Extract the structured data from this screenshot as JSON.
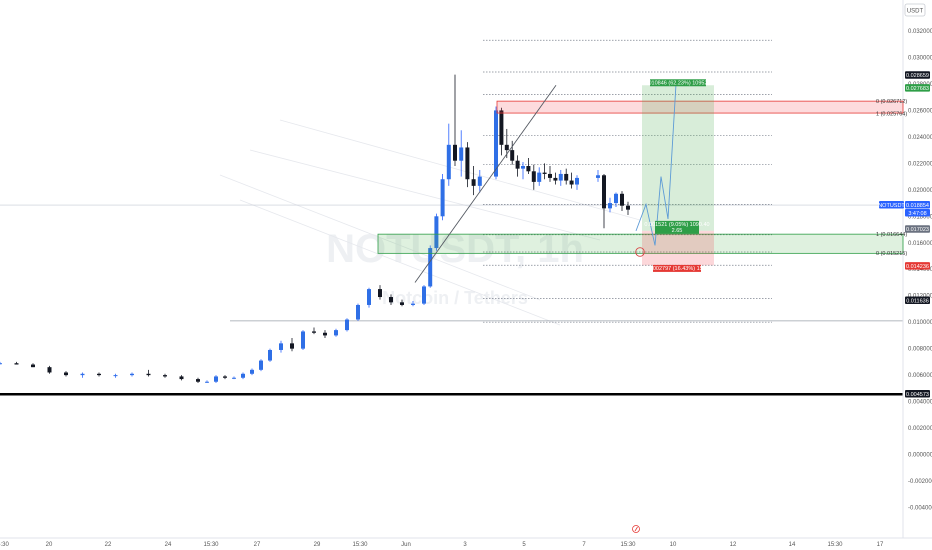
{
  "chart_data": {
    "type": "candlestick",
    "symbol": "NOTUSDT",
    "quote_unit": "USDT",
    "watermark": "NOTUSDT, 1h",
    "watermark_sub": "Notcoin / Tethers",
    "y_range": [
      -0.021,
      0.0345
    ],
    "y_ticks": [
      "0.032000",
      "0.030000",
      "0.028000",
      "0.026000",
      "0.024000",
      "0.022000",
      "0.020000",
      "0.018000",
      "0.016000",
      "0.014000",
      "0.012000",
      "0.010000",
      "0.008000",
      "0.006000",
      "0.004000",
      "0.002000",
      "0.000000",
      "-0.002000",
      "-0.004000"
    ],
    "y_tick_values": [
      0.032,
      0.03,
      0.028,
      0.026,
      0.024,
      0.022,
      0.02,
      0.018,
      0.016,
      0.014,
      0.012,
      0.01,
      0.008,
      0.006,
      0.004,
      0.002,
      0.0,
      -0.002,
      -0.004
    ],
    "time_labels": [
      "6:30",
      "20",
      "22",
      "24",
      "15:30",
      "27",
      "29",
      "15:30",
      "Jun",
      "3",
      "5",
      "7",
      "15:30",
      "10",
      "12",
      "14",
      "15:30",
      "17"
    ],
    "time_positions": [
      0,
      46,
      105,
      165,
      208,
      254,
      314,
      357,
      403,
      462,
      521,
      581,
      625,
      670,
      730,
      789,
      832,
      877
    ],
    "candles": [
      {
        "o": 0.0069,
        "h": 0.007,
        "l": 0.0068,
        "c": 0.0069
      },
      {
        "o": 0.0069,
        "h": 0.007,
        "l": 0.0068,
        "c": 0.0068
      },
      {
        "o": 0.0068,
        "h": 0.0069,
        "l": 0.0066,
        "c": 0.0066
      },
      {
        "o": 0.0066,
        "h": 0.0067,
        "l": 0.0061,
        "c": 0.0062
      },
      {
        "o": 0.0062,
        "h": 0.0063,
        "l": 0.0059,
        "c": 0.006
      },
      {
        "o": 0.006,
        "h": 0.0062,
        "l": 0.0058,
        "c": 0.0061
      },
      {
        "o": 0.0061,
        "h": 0.0062,
        "l": 0.0059,
        "c": 0.006
      },
      {
        "o": 0.006,
        "h": 0.0061,
        "l": 0.0058,
        "c": 0.006
      },
      {
        "o": 0.006,
        "h": 0.0062,
        "l": 0.0059,
        "c": 0.0061
      },
      {
        "o": 0.0061,
        "h": 0.0064,
        "l": 0.0059,
        "c": 0.006
      },
      {
        "o": 0.006,
        "h": 0.0061,
        "l": 0.0058,
        "c": 0.0059
      },
      {
        "o": 0.0059,
        "h": 0.006,
        "l": 0.0056,
        "c": 0.0057
      },
      {
        "o": 0.0057,
        "h": 0.0058,
        "l": 0.0054,
        "c": 0.0055
      },
      {
        "o": 0.0055,
        "h": 0.0056,
        "l": 0.0054,
        "c": 0.0055
      },
      {
        "o": 0.0055,
        "h": 0.006,
        "l": 0.0054,
        "c": 0.0059
      },
      {
        "o": 0.0059,
        "h": 0.006,
        "l": 0.0057,
        "c": 0.0058
      },
      {
        "o": 0.0058,
        "h": 0.0059,
        "l": 0.0057,
        "c": 0.0058
      },
      {
        "o": 0.0058,
        "h": 0.0062,
        "l": 0.0057,
        "c": 0.0061
      },
      {
        "o": 0.0061,
        "h": 0.0065,
        "l": 0.006,
        "c": 0.0064
      },
      {
        "o": 0.0064,
        "h": 0.0072,
        "l": 0.0063,
        "c": 0.0071
      },
      {
        "o": 0.0071,
        "h": 0.008,
        "l": 0.007,
        "c": 0.0079
      },
      {
        "o": 0.0079,
        "h": 0.0086,
        "l": 0.0077,
        "c": 0.0084
      },
      {
        "o": 0.0084,
        "h": 0.0088,
        "l": 0.0078,
        "c": 0.008
      },
      {
        "o": 0.008,
        "h": 0.0094,
        "l": 0.0079,
        "c": 0.0093
      },
      {
        "o": 0.0093,
        "h": 0.0096,
        "l": 0.0091,
        "c": 0.0092
      },
      {
        "o": 0.0092,
        "h": 0.0094,
        "l": 0.0088,
        "c": 0.009
      },
      {
        "o": 0.009,
        "h": 0.0095,
        "l": 0.0089,
        "c": 0.0094
      },
      {
        "o": 0.0094,
        "h": 0.0103,
        "l": 0.0093,
        "c": 0.0102
      },
      {
        "o": 0.0102,
        "h": 0.0114,
        "l": 0.0101,
        "c": 0.0113
      },
      {
        "o": 0.0113,
        "h": 0.0126,
        "l": 0.0111,
        "c": 0.0125
      },
      {
        "o": 0.0125,
        "h": 0.0128,
        "l": 0.0117,
        "c": 0.0119
      },
      {
        "o": 0.0119,
        "h": 0.0121,
        "l": 0.0113,
        "c": 0.0115
      },
      {
        "o": 0.0115,
        "h": 0.0117,
        "l": 0.0112,
        "c": 0.0113
      },
      {
        "o": 0.0113,
        "h": 0.0116,
        "l": 0.0112,
        "c": 0.0114
      },
      {
        "o": 0.0114,
        "h": 0.0128,
        "l": 0.0113,
        "c": 0.0127
      },
      {
        "o": 0.0127,
        "h": 0.0158,
        "l": 0.0126,
        "c": 0.0156
      },
      {
        "o": 0.0156,
        "h": 0.0182,
        "l": 0.0154,
        "c": 0.018
      },
      {
        "o": 0.018,
        "h": 0.0212,
        "l": 0.0177,
        "c": 0.0208
      },
      {
        "o": 0.0208,
        "h": 0.025,
        "l": 0.0203,
        "c": 0.0234
      },
      {
        "o": 0.0234,
        "h": 0.0287,
        "l": 0.0218,
        "c": 0.0222
      },
      {
        "o": 0.0222,
        "h": 0.0245,
        "l": 0.021,
        "c": 0.0232
      },
      {
        "o": 0.0232,
        "h": 0.0236,
        "l": 0.0202,
        "c": 0.0208
      },
      {
        "o": 0.0208,
        "h": 0.0218,
        "l": 0.0196,
        "c": 0.0203
      },
      {
        "o": 0.0203,
        "h": 0.0215,
        "l": 0.0198,
        "c": 0.021
      },
      {
        "o": 0.021,
        "h": 0.0263,
        "l": 0.0208,
        "c": 0.026
      },
      {
        "o": 0.026,
        "h": 0.0262,
        "l": 0.0226,
        "c": 0.0234
      },
      {
        "o": 0.0234,
        "h": 0.0246,
        "l": 0.0224,
        "c": 0.023
      },
      {
        "o": 0.023,
        "h": 0.0237,
        "l": 0.0219,
        "c": 0.0222
      },
      {
        "o": 0.0222,
        "h": 0.0226,
        "l": 0.021,
        "c": 0.0216
      },
      {
        "o": 0.0216,
        "h": 0.0221,
        "l": 0.0208,
        "c": 0.0218
      },
      {
        "o": 0.0218,
        "h": 0.0224,
        "l": 0.0212,
        "c": 0.0214
      },
      {
        "o": 0.0214,
        "h": 0.0219,
        "l": 0.02,
        "c": 0.0206
      },
      {
        "o": 0.0206,
        "h": 0.0217,
        "l": 0.0203,
        "c": 0.0213
      },
      {
        "o": 0.0213,
        "h": 0.022,
        "l": 0.0208,
        "c": 0.0212
      },
      {
        "o": 0.0212,
        "h": 0.0218,
        "l": 0.0206,
        "c": 0.0209
      },
      {
        "o": 0.0209,
        "h": 0.0213,
        "l": 0.0204,
        "c": 0.0207
      },
      {
        "o": 0.0207,
        "h": 0.0215,
        "l": 0.0203,
        "c": 0.0212
      },
      {
        "o": 0.0212,
        "h": 0.0216,
        "l": 0.0204,
        "c": 0.0207
      },
      {
        "o": 0.0207,
        "h": 0.0213,
        "l": 0.0201,
        "c": 0.0204
      },
      {
        "o": 0.0204,
        "h": 0.0211,
        "l": 0.02,
        "c": 0.0209
      },
      {
        "o": 0.0209,
        "h": 0.0215,
        "l": 0.0206,
        "c": 0.0211
      },
      {
        "o": 0.0211,
        "h": 0.0212,
        "l": 0.0171,
        "c": 0.0186
      },
      {
        "o": 0.0186,
        "h": 0.0194,
        "l": 0.0183,
        "c": 0.019
      },
      {
        "o": 0.019,
        "h": 0.0198,
        "l": 0.0187,
        "c": 0.0197
      },
      {
        "o": 0.0197,
        "h": 0.0199,
        "l": 0.0184,
        "c": 0.0188
      },
      {
        "o": 0.0188,
        "h": 0.0191,
        "l": 0.0181,
        "c": 0.0185
      }
    ],
    "candle_x": [
      3,
      7,
      11,
      15,
      20,
      24,
      28,
      32,
      36,
      40,
      44,
      48,
      52,
      56,
      60,
      64,
      68,
      72,
      76,
      80,
      84,
      88,
      92,
      96,
      100,
      104,
      108,
      112,
      116,
      120,
      124,
      128,
      132,
      136,
      140,
      144,
      148,
      152,
      156,
      160,
      164,
      168,
      172,
      176,
      180,
      184,
      188,
      192,
      196,
      200,
      204,
      208,
      212,
      216,
      220,
      224,
      228,
      232,
      236,
      240,
      244,
      248,
      252,
      256,
      260,
      264
    ],
    "series_note": "daily candles from 6:30 to Jun 9",
    "price_labels": [
      {
        "text": "0.028659",
        "value": 0.028659,
        "style": "dark"
      },
      {
        "text": "0.027683",
        "value": 0.027683,
        "style": "green"
      },
      {
        "text": "0.018854",
        "value": 0.018854,
        "style": "blue"
      },
      {
        "text": "3:47:08",
        "value": 0.01825,
        "style": "blue_sub"
      },
      {
        "text": "0.017023",
        "value": 0.017023,
        "style": "gray"
      },
      {
        "text": "0.014236",
        "value": 0.014236,
        "style": "red"
      },
      {
        "text": "0.011636",
        "value": 0.011636,
        "style": "dark"
      },
      {
        "text": "0.004573",
        "value": 0.004573,
        "style": "dark"
      }
    ],
    "symbol_tag": "NOTUSDT",
    "fib_upper": [
      {
        "text": "0 (0.026712)",
        "value": 0.026712
      },
      {
        "text": "1 (0.025764)",
        "value": 0.025764
      }
    ],
    "fib_lower": [
      {
        "text": "1 (0.016644)",
        "value": 0.016644
      },
      {
        "text": "0 (0.015215)",
        "value": 0.015215
      }
    ],
    "fib_lines": [
      0.0313,
      0.0289,
      0.0272,
      0.0241,
      0.0219,
      0.0189,
      0.0166,
      0.0153,
      0.0143,
      0.0118,
      0.01
    ],
    "target_label": "0.010846 (62.23%) 10952.8",
    "target_value": 0.0279,
    "entry_label_1": "0.001521 (9.05%) 1090.40",
    "entry_label_2": "2.65",
    "stop_label": "0.002797 (16.43%) 152",
    "support_line": 0.0101,
    "bottom_line": 0.00455,
    "forecast_path": [
      [
        0.0169,
        0
      ],
      [
        0.0189,
        1
      ],
      [
        0.0158,
        2
      ],
      [
        0.021,
        3
      ],
      [
        0.0178,
        4
      ],
      [
        0.028,
        5
      ]
    ]
  }
}
